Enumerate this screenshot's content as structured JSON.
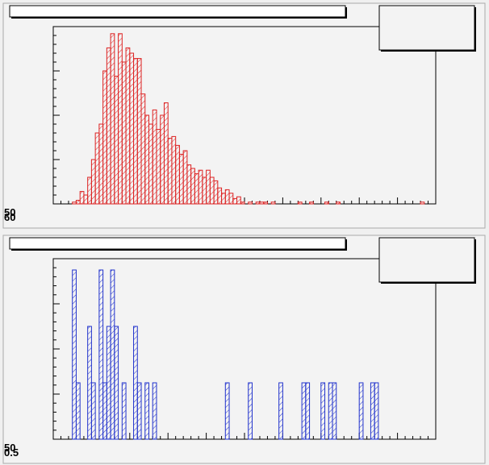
{
  "chart_data": [
    {
      "type": "histogram",
      "color": "#dd2222",
      "xlim": [
        0,
        100
      ],
      "ylim": [
        0,
        100
      ],
      "bins": [
        0,
        1,
        2,
        3,
        4,
        5,
        6,
        7,
        8,
        9,
        10,
        11,
        12,
        13,
        14,
        15,
        16,
        17,
        18,
        19,
        20,
        21,
        22,
        23,
        24,
        25,
        26,
        27,
        28,
        29,
        30,
        31,
        32,
        33,
        34,
        35,
        36,
        37,
        38,
        39,
        40,
        41,
        42,
        43,
        44,
        45,
        46,
        47,
        48,
        49,
        50,
        51,
        52,
        53,
        54,
        55,
        56,
        57,
        58,
        59,
        60,
        61,
        62,
        63,
        64,
        65,
        66,
        67,
        68,
        69,
        70,
        71,
        72,
        73,
        74,
        75,
        76,
        77,
        78,
        79,
        80,
        81,
        82,
        83,
        84,
        85,
        86,
        87,
        88,
        89,
        90,
        91,
        92,
        93,
        94,
        95,
        96,
        97,
        98,
        99,
        100
      ],
      "values": [
        0,
        0,
        0,
        0,
        0,
        1,
        2,
        7,
        5,
        15,
        25,
        40,
        45,
        75,
        88,
        96,
        72,
        96,
        80,
        88,
        85,
        82,
        82,
        62,
        50,
        45,
        53,
        42,
        50,
        57,
        37,
        38,
        33,
        28,
        30,
        22,
        20,
        17,
        19,
        15,
        19,
        15,
        13,
        9,
        6,
        8,
        6,
        3,
        4,
        1,
        0,
        1,
        0,
        1,
        1,
        1,
        0,
        1,
        0,
        0,
        0,
        0,
        0,
        0,
        1,
        0,
        0,
        1,
        0,
        0,
        0,
        1,
        0,
        0,
        1,
        0,
        0,
        0,
        0,
        0,
        0,
        0,
        0,
        0,
        0,
        0,
        0,
        0,
        0,
        0,
        0,
        0,
        0,
        0,
        0,
        0,
        1,
        0,
        0,
        0
      ],
      "corner_labels": [
        "50",
        "60"
      ]
    },
    {
      "type": "histogram",
      "color": "#2233cc",
      "xlim": [
        0,
        100
      ],
      "ylim": [
        0,
        3.2
      ],
      "bins": [
        0,
        1,
        2,
        3,
        4,
        5,
        6,
        7,
        8,
        9,
        10,
        11,
        12,
        13,
        14,
        15,
        16,
        17,
        18,
        19,
        20,
        21,
        22,
        23,
        24,
        25,
        26,
        27,
        28,
        29,
        30,
        31,
        32,
        33,
        34,
        35,
        36,
        37,
        38,
        39,
        40,
        41,
        42,
        43,
        44,
        45,
        46,
        47,
        48,
        49,
        50,
        51,
        52,
        53,
        54,
        55,
        56,
        57,
        58,
        59,
        60,
        61,
        62,
        63,
        64,
        65,
        66,
        67,
        68,
        69,
        70,
        71,
        72,
        73,
        74,
        75,
        76,
        77,
        78,
        79,
        80,
        81,
        82,
        83,
        84,
        85,
        86,
        87,
        88,
        89,
        90,
        91,
        92,
        93,
        94,
        95,
        96,
        97,
        98,
        99,
        100
      ],
      "values": [
        0,
        0,
        0,
        0,
        0,
        3,
        1,
        0,
        0,
        2,
        1,
        0,
        3,
        1,
        2,
        3,
        2,
        0,
        1,
        0,
        0,
        2,
        1,
        0,
        1,
        0,
        1,
        0,
        0,
        0,
        0,
        0,
        0,
        0,
        0,
        0,
        0,
        0,
        0,
        0,
        0,
        0,
        0,
        0,
        0,
        1,
        0,
        0,
        0,
        0,
        0,
        1,
        0,
        0,
        0,
        0,
        0,
        0,
        0,
        1,
        0,
        0,
        0,
        0,
        0,
        1,
        1,
        0,
        0,
        0,
        1,
        0,
        1,
        1,
        0,
        0,
        0,
        0,
        0,
        0,
        1,
        0,
        0,
        1,
        1,
        0,
        0,
        0,
        0,
        0,
        0,
        0,
        0,
        0,
        0,
        0,
        0,
        0,
        0,
        0
      ],
      "corner_labels": [
        "50",
        "0.5"
      ]
    }
  ]
}
